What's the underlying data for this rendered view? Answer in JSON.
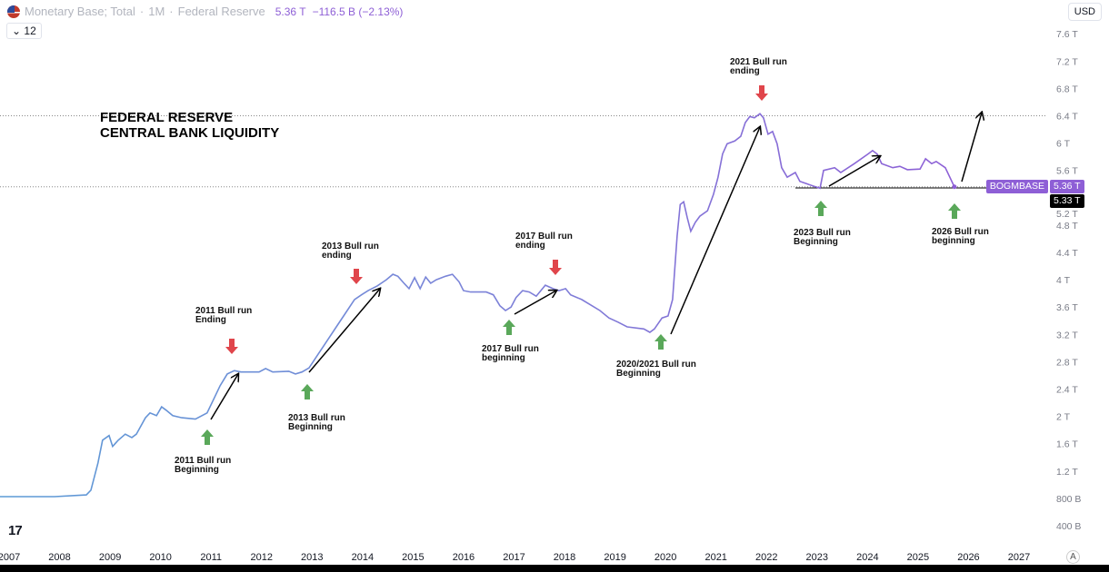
{
  "header": {
    "symbol_title": "Monetary Base; Total",
    "interval": "1M",
    "source": "Federal Reserve",
    "last_value": "5.36 T",
    "change": "−116.5 B (−2.13%)",
    "indicator_count": "12",
    "currency": "USD"
  },
  "chart_title_line1": "FEDERAL RESERVE",
  "chart_title_line2": "CENTRAL BANK LIQUIDITY",
  "price_tags": {
    "symbol": "BOGMBASE",
    "value": "5.36 T",
    "crosshair": "5.33 T"
  },
  "annotations": [
    {
      "text": "2011 Bull run\nBeginning",
      "type": "up"
    },
    {
      "text": "2011 Bull run\nEnding",
      "type": "down"
    },
    {
      "text": "2013 Bull run\nBeginning",
      "type": "up"
    },
    {
      "text": "2013 Bull run\nending",
      "type": "down"
    },
    {
      "text": "2017 Bull run\nbeginning",
      "type": "up"
    },
    {
      "text": "2017 Bull run\nending",
      "type": "down"
    },
    {
      "text": "2020/2021 Bull run\nBeginning",
      "type": "up"
    },
    {
      "text": "2021 Bull run\nending",
      "type": "down"
    },
    {
      "text": "2023 Bull run\nBeginning",
      "type": "up"
    },
    {
      "text": "2026 Bull run\nbeginning",
      "type": "up"
    }
  ],
  "logo_text": "17",
  "auto_label": "A",
  "colors": {
    "line_start": "#5b9bd5",
    "line_end": "#8e5fd6",
    "up": "#5aa85a",
    "down": "#e0454b",
    "tag": "#8e5fd6"
  },
  "chart_data": {
    "type": "line",
    "title": "Monetary Base; Total",
    "xlabel": "",
    "ylabel": "",
    "xlim": [
      2007,
      2027
    ],
    "ylim": [
      0.4,
      7.6
    ],
    "x_ticks": [
      "2007",
      "2008",
      "2009",
      "2010",
      "2011",
      "2012",
      "2013",
      "2014",
      "2015",
      "2016",
      "2017",
      "2018",
      "2019",
      "2020",
      "2021",
      "2022",
      "2023",
      "2024",
      "2025",
      "2026",
      "2027"
    ],
    "y_ticks": [
      "400 B",
      "800 B",
      "1.2 T",
      "1.6 T",
      "2 T",
      "2.4 T",
      "2.8 T",
      "3.2 T",
      "3.6 T",
      "4 T",
      "4.4 T",
      "4.8 T",
      "5.2 T",
      "5.6 T",
      "6 T",
      "6.4 T",
      "6.8 T",
      "7.2 T",
      "7.6 T"
    ],
    "series": [
      {
        "name": "BOGMBASE",
        "unit": "T USD",
        "points": [
          [
            2006.82,
            0.825
          ],
          [
            2007.9,
            0.825
          ],
          [
            2008.53,
            0.85
          ],
          [
            2008.62,
            0.92
          ],
          [
            2008.76,
            1.32
          ],
          [
            2008.85,
            1.65
          ],
          [
            2008.98,
            1.72
          ],
          [
            2009.05,
            1.56
          ],
          [
            2009.16,
            1.65
          ],
          [
            2009.3,
            1.74
          ],
          [
            2009.43,
            1.69
          ],
          [
            2009.52,
            1.74
          ],
          [
            2009.7,
            1.98
          ],
          [
            2009.79,
            2.05
          ],
          [
            2009.92,
            2.01
          ],
          [
            2010.02,
            2.14
          ],
          [
            2010.11,
            2.09
          ],
          [
            2010.24,
            2.01
          ],
          [
            2010.42,
            1.98
          ],
          [
            2010.69,
            1.96
          ],
          [
            2010.92,
            2.05
          ],
          [
            2011.05,
            2.25
          ],
          [
            2011.18,
            2.45
          ],
          [
            2011.32,
            2.62
          ],
          [
            2011.46,
            2.67
          ],
          [
            2011.59,
            2.65
          ],
          [
            2011.95,
            2.65
          ],
          [
            2012.08,
            2.7
          ],
          [
            2012.22,
            2.65
          ],
          [
            2012.54,
            2.66
          ],
          [
            2012.67,
            2.62
          ],
          [
            2012.8,
            2.65
          ],
          [
            2012.94,
            2.71
          ],
          [
            2013.12,
            2.91
          ],
          [
            2013.3,
            3.11
          ],
          [
            2013.48,
            3.31
          ],
          [
            2013.66,
            3.51
          ],
          [
            2013.84,
            3.71
          ],
          [
            2013.98,
            3.78
          ],
          [
            2014.11,
            3.84
          ],
          [
            2014.29,
            3.91
          ],
          [
            2014.47,
            4.0
          ],
          [
            2014.6,
            4.08
          ],
          [
            2014.7,
            4.05
          ],
          [
            2014.83,
            3.94
          ],
          [
            2014.92,
            3.87
          ],
          [
            2015.03,
            4.03
          ],
          [
            2015.14,
            3.87
          ],
          [
            2015.25,
            4.04
          ],
          [
            2015.35,
            3.95
          ],
          [
            2015.46,
            4.0
          ],
          [
            2015.64,
            4.05
          ],
          [
            2015.78,
            4.08
          ],
          [
            2015.91,
            3.97
          ],
          [
            2016.0,
            3.84
          ],
          [
            2016.14,
            3.82
          ],
          [
            2016.45,
            3.82
          ],
          [
            2016.59,
            3.78
          ],
          [
            2016.72,
            3.62
          ],
          [
            2016.83,
            3.55
          ],
          [
            2016.94,
            3.6
          ],
          [
            2017.04,
            3.74
          ],
          [
            2017.17,
            3.84
          ],
          [
            2017.3,
            3.82
          ],
          [
            2017.44,
            3.76
          ],
          [
            2017.62,
            3.92
          ],
          [
            2017.77,
            3.87
          ],
          [
            2017.89,
            3.84
          ],
          [
            2018.02,
            3.87
          ],
          [
            2018.12,
            3.78
          ],
          [
            2018.34,
            3.71
          ],
          [
            2018.52,
            3.63
          ],
          [
            2018.7,
            3.55
          ],
          [
            2018.88,
            3.44
          ],
          [
            2019.06,
            3.38
          ],
          [
            2019.24,
            3.31
          ],
          [
            2019.57,
            3.28
          ],
          [
            2019.69,
            3.23
          ],
          [
            2019.78,
            3.28
          ],
          [
            2019.93,
            3.44
          ],
          [
            2020.05,
            3.47
          ],
          [
            2020.14,
            3.71
          ],
          [
            2020.23,
            4.64
          ],
          [
            2020.29,
            5.1
          ],
          [
            2020.36,
            5.14
          ],
          [
            2020.43,
            4.91
          ],
          [
            2020.5,
            4.71
          ],
          [
            2020.59,
            4.84
          ],
          [
            2020.68,
            4.93
          ],
          [
            2020.83,
            5.01
          ],
          [
            2020.95,
            5.25
          ],
          [
            2021.04,
            5.5
          ],
          [
            2021.13,
            5.84
          ],
          [
            2021.22,
            5.99
          ],
          [
            2021.37,
            6.03
          ],
          [
            2021.49,
            6.1
          ],
          [
            2021.58,
            6.3
          ],
          [
            2021.67,
            6.39
          ],
          [
            2021.76,
            6.37
          ],
          [
            2021.87,
            6.43
          ],
          [
            2021.94,
            6.37
          ],
          [
            2022.03,
            6.13
          ],
          [
            2022.12,
            6.17
          ],
          [
            2022.21,
            5.99
          ],
          [
            2022.3,
            5.64
          ],
          [
            2022.41,
            5.5
          ],
          [
            2022.57,
            5.57
          ],
          [
            2022.66,
            5.44
          ],
          [
            2022.93,
            5.37
          ],
          [
            2023.06,
            5.34
          ],
          [
            2023.13,
            5.6
          ],
          [
            2023.35,
            5.64
          ],
          [
            2023.47,
            5.57
          ],
          [
            2023.74,
            5.7
          ],
          [
            2024.01,
            5.84
          ],
          [
            2024.1,
            5.89
          ],
          [
            2024.19,
            5.84
          ],
          [
            2024.28,
            5.7
          ],
          [
            2024.5,
            5.64
          ],
          [
            2024.64,
            5.66
          ],
          [
            2024.79,
            5.61
          ],
          [
            2025.04,
            5.62
          ],
          [
            2025.15,
            5.77
          ],
          [
            2025.27,
            5.7
          ],
          [
            2025.36,
            5.73
          ],
          [
            2025.54,
            5.64
          ],
          [
            2025.63,
            5.5
          ],
          [
            2025.72,
            5.36
          ]
        ]
      }
    ],
    "reference_lines": [
      6.4,
      5.36
    ],
    "grid": false,
    "legend": "top-left"
  }
}
